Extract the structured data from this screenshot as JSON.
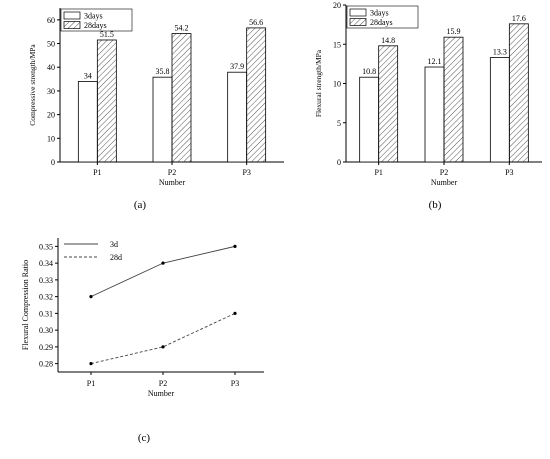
{
  "panels": [
    "(a)",
    "(b)",
    "(c)"
  ],
  "chart_data": [
    {
      "type": "bar",
      "categories": [
        "P1",
        "P2",
        "P3"
      ],
      "series": [
        {
          "name": "3days",
          "values": [
            34,
            35.8,
            37.9
          ],
          "labels": [
            "34",
            "35.8",
            "37.9"
          ],
          "fill": "none"
        },
        {
          "name": "28days",
          "values": [
            51.5,
            54.2,
            56.6
          ],
          "labels": [
            "51.5",
            "54.2",
            "56.6"
          ],
          "fill": "hatch"
        }
      ],
      "ylim": [
        0,
        65
      ],
      "yticks": [
        "0",
        "10",
        "20",
        "30",
        "40",
        "50",
        "60"
      ],
      "xlabel": "Number",
      "ylabel": "Compressive strength/MPa",
      "legend": "top-left",
      "grid": false
    },
    {
      "type": "bar",
      "categories": [
        "P1",
        "P2",
        "P3"
      ],
      "series": [
        {
          "name": "3days",
          "values": [
            10.8,
            12.1,
            13.3
          ],
          "labels": [
            "10.8",
            "12.1",
            "13.3"
          ],
          "fill": "none"
        },
        {
          "name": "28days",
          "values": [
            14.8,
            15.9,
            17.6
          ],
          "labels": [
            "14.8",
            "15.9",
            "17.6"
          ],
          "fill": "hatch"
        }
      ],
      "ylim": [
        0,
        20
      ],
      "yticks": [
        "0",
        "5",
        "10",
        "15",
        "20"
      ],
      "xlabel": "Number",
      "ylabel": "Flexural strength/MPa",
      "legend": "top-left",
      "grid": false
    },
    {
      "type": "line",
      "categories": [
        "P1",
        "P2",
        "P3"
      ],
      "series": [
        {
          "name": "3d",
          "values": [
            0.32,
            0.34,
            0.35
          ],
          "dash": "solid"
        },
        {
          "name": "28d",
          "values": [
            0.28,
            0.29,
            0.31
          ],
          "dash": "dashed"
        }
      ],
      "ylim": [
        0.275,
        0.355
      ],
      "yticks": [
        "0.28",
        "0.29",
        "0.30",
        "0.31",
        "0.32",
        "0.33",
        "0.34",
        "0.35"
      ],
      "xlabel": "Number",
      "ylabel": "Flexural Compression Ratio",
      "legend": "top-left",
      "grid": false
    }
  ]
}
